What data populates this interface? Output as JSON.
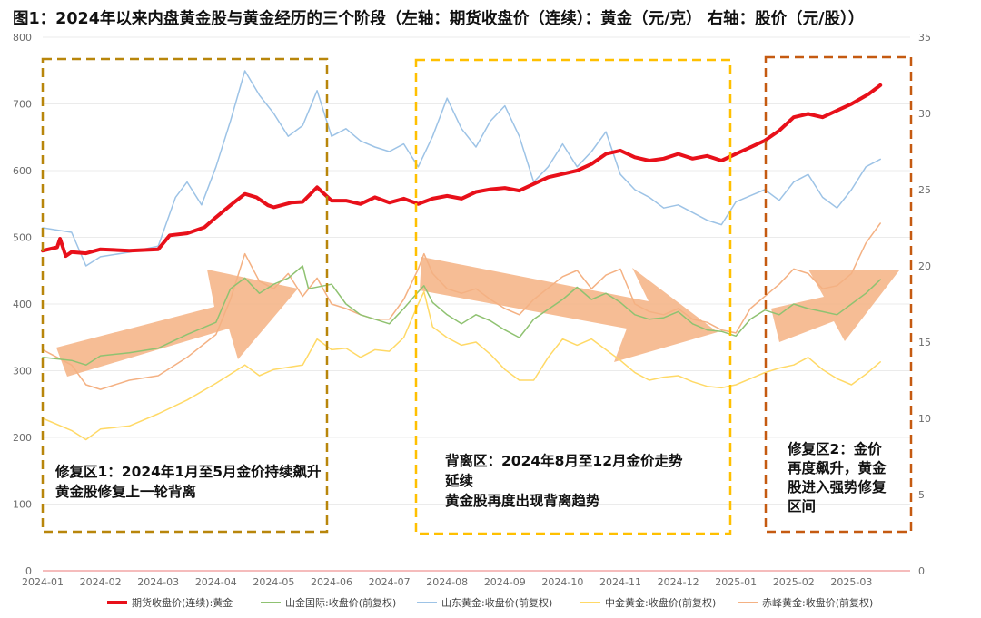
{
  "title": "图1：2024年以来内盘黄金股与黄金经历的三个阶段（左轴：期货收盘价（连续）：黄金（元/克） 右轴：股价（元/股））",
  "chart_data": {
    "type": "line",
    "x_labels": [
      "2024-01",
      "2024-02",
      "2024-03",
      "2024-04",
      "2024-05",
      "2024-06",
      "2024-07",
      "2024-08",
      "2024-09",
      "2024-10",
      "2024-11",
      "2024-12",
      "2025-01",
      "2025-02",
      "2025-03"
    ],
    "y_left": {
      "label": "期货收盘价（连续）：黄金（元/克）",
      "range": [
        0,
        800
      ],
      "ticks": [
        0,
        100,
        200,
        300,
        400,
        500,
        600,
        700,
        800
      ]
    },
    "y_right": {
      "label": "股价（元/股）",
      "range": [
        0,
        35
      ],
      "ticks": [
        0,
        5,
        10,
        15,
        20,
        25,
        30,
        35
      ]
    },
    "series": [
      {
        "name": "期货收盘价(连续):黄金",
        "axis": "left",
        "color": "#e8101a",
        "width": 4,
        "points": [
          [
            0,
            480
          ],
          [
            0.25,
            485
          ],
          [
            0.3,
            498
          ],
          [
            0.4,
            472
          ],
          [
            0.5,
            478
          ],
          [
            0.75,
            476
          ],
          [
            1,
            482
          ],
          [
            1.5,
            480
          ],
          [
            2,
            482
          ],
          [
            2.2,
            503
          ],
          [
            2.5,
            506
          ],
          [
            2.8,
            515
          ],
          [
            3,
            530
          ],
          [
            3.25,
            548
          ],
          [
            3.5,
            565
          ],
          [
            3.7,
            560
          ],
          [
            3.9,
            548
          ],
          [
            4,
            545
          ],
          [
            4.3,
            552
          ],
          [
            4.5,
            553
          ],
          [
            4.75,
            575
          ],
          [
            5,
            555
          ],
          [
            5.25,
            555
          ],
          [
            5.5,
            550
          ],
          [
            5.75,
            560
          ],
          [
            6,
            552
          ],
          [
            6.25,
            558
          ],
          [
            6.5,
            550
          ],
          [
            6.75,
            558
          ],
          [
            7,
            562
          ],
          [
            7.25,
            558
          ],
          [
            7.5,
            568
          ],
          [
            7.75,
            572
          ],
          [
            8,
            574
          ],
          [
            8.25,
            570
          ],
          [
            8.5,
            580
          ],
          [
            8.75,
            590
          ],
          [
            9,
            595
          ],
          [
            9.25,
            600
          ],
          [
            9.5,
            610
          ],
          [
            9.75,
            625
          ],
          [
            10,
            630
          ],
          [
            10.25,
            620
          ],
          [
            10.5,
            615
          ],
          [
            10.75,
            618
          ],
          [
            11,
            625
          ],
          [
            11.25,
            618
          ],
          [
            11.5,
            622
          ],
          [
            11.75,
            615
          ],
          [
            12,
            625
          ],
          [
            12.25,
            635
          ],
          [
            12.5,
            645
          ],
          [
            12.75,
            660
          ],
          [
            13,
            680
          ],
          [
            13.25,
            685
          ],
          [
            13.5,
            680
          ],
          [
            13.75,
            690
          ],
          [
            14,
            700
          ],
          [
            14.3,
            715
          ],
          [
            14.5,
            728
          ]
        ]
      },
      {
        "name": "山金国际:收盘价(前复权)",
        "axis": "right",
        "color": "#8fc271",
        "width": 1.5,
        "points": [
          [
            0,
            14
          ],
          [
            0.5,
            13.8
          ],
          [
            0.75,
            13.5
          ],
          [
            1,
            14.1
          ],
          [
            1.5,
            14.3
          ],
          [
            2,
            14.6
          ],
          [
            2.5,
            15.5
          ],
          [
            3,
            16.3
          ],
          [
            3.25,
            18.5
          ],
          [
            3.5,
            19.2
          ],
          [
            3.75,
            18.2
          ],
          [
            4,
            18.8
          ],
          [
            4.25,
            19.2
          ],
          [
            4.5,
            20
          ],
          [
            4.6,
            18.5
          ],
          [
            5,
            18.8
          ],
          [
            5.25,
            17.5
          ],
          [
            5.5,
            16.8
          ],
          [
            5.75,
            16.5
          ],
          [
            6,
            16.2
          ],
          [
            6.25,
            17.2
          ],
          [
            6.5,
            18.3
          ],
          [
            6.6,
            18.7
          ],
          [
            6.75,
            17.6
          ],
          [
            7,
            16.8
          ],
          [
            7.25,
            16.2
          ],
          [
            7.5,
            16.8
          ],
          [
            7.75,
            16.4
          ],
          [
            8,
            15.8
          ],
          [
            8.25,
            15.3
          ],
          [
            8.5,
            16.5
          ],
          [
            9,
            17.8
          ],
          [
            9.25,
            18.6
          ],
          [
            9.5,
            17.8
          ],
          [
            9.75,
            18.2
          ],
          [
            10,
            17.6
          ],
          [
            10.25,
            16.8
          ],
          [
            10.5,
            16.5
          ],
          [
            10.75,
            16.6
          ],
          [
            11,
            17
          ],
          [
            11.25,
            16.2
          ],
          [
            11.5,
            15.8
          ],
          [
            11.75,
            15.7
          ],
          [
            12,
            15.4
          ],
          [
            12.25,
            16.5
          ],
          [
            12.5,
            17.1
          ],
          [
            12.75,
            16.8
          ],
          [
            13,
            17.5
          ],
          [
            13.25,
            17.2
          ],
          [
            13.5,
            17
          ],
          [
            13.75,
            16.8
          ],
          [
            14,
            17.5
          ],
          [
            14.25,
            18.2
          ],
          [
            14.5,
            19.1
          ]
        ]
      },
      {
        "name": "山东黄金:收盘价(前复权)",
        "axis": "right",
        "color": "#9dc3e6",
        "width": 1.5,
        "points": [
          [
            0,
            22.5
          ],
          [
            0.5,
            22.2
          ],
          [
            0.75,
            20
          ],
          [
            1,
            20.6
          ],
          [
            1.5,
            20.9
          ],
          [
            2,
            21.3
          ],
          [
            2.3,
            24.5
          ],
          [
            2.5,
            25.5
          ],
          [
            2.75,
            24
          ],
          [
            3,
            26.5
          ],
          [
            3.25,
            29.5
          ],
          [
            3.5,
            32.8
          ],
          [
            3.75,
            31.2
          ],
          [
            4,
            30
          ],
          [
            4.25,
            28.5
          ],
          [
            4.5,
            29.2
          ],
          [
            4.75,
            31.5
          ],
          [
            5,
            28.5
          ],
          [
            5.25,
            29
          ],
          [
            5.5,
            28.2
          ],
          [
            5.75,
            27.8
          ],
          [
            6,
            27.5
          ],
          [
            6.25,
            28
          ],
          [
            6.5,
            26.5
          ],
          [
            6.75,
            28.5
          ],
          [
            7,
            31
          ],
          [
            7.25,
            29
          ],
          [
            7.5,
            27.8
          ],
          [
            7.75,
            29.5
          ],
          [
            8,
            30.5
          ],
          [
            8.25,
            28.5
          ],
          [
            8.5,
            25.5
          ],
          [
            8.75,
            26.5
          ],
          [
            9,
            28
          ],
          [
            9.25,
            26.5
          ],
          [
            9.5,
            27.5
          ],
          [
            9.75,
            28.8
          ],
          [
            10,
            26
          ],
          [
            10.25,
            25
          ],
          [
            10.5,
            24.5
          ],
          [
            10.75,
            23.8
          ],
          [
            11,
            24
          ],
          [
            11.25,
            23.5
          ],
          [
            11.5,
            23
          ],
          [
            11.75,
            22.7
          ],
          [
            12,
            24.2
          ],
          [
            12.25,
            24.6
          ],
          [
            12.5,
            25
          ],
          [
            12.75,
            24.3
          ],
          [
            13,
            25.5
          ],
          [
            13.25,
            26
          ],
          [
            13.5,
            24.5
          ],
          [
            13.75,
            23.8
          ],
          [
            14,
            25
          ],
          [
            14.25,
            26.5
          ],
          [
            14.5,
            27
          ]
        ]
      },
      {
        "name": "中金黄金:收盘价(前复权)",
        "axis": "right",
        "color": "#ffd966",
        "width": 1.5,
        "points": [
          [
            0,
            10
          ],
          [
            0.5,
            9.2
          ],
          [
            0.75,
            8.6
          ],
          [
            1,
            9.3
          ],
          [
            1.5,
            9.5
          ],
          [
            2,
            10.3
          ],
          [
            2.5,
            11.2
          ],
          [
            3,
            12.3
          ],
          [
            3.5,
            13.5
          ],
          [
            3.75,
            12.8
          ],
          [
            4,
            13.2
          ],
          [
            4.5,
            13.5
          ],
          [
            4.75,
            15.2
          ],
          [
            5,
            14.5
          ],
          [
            5.25,
            14.6
          ],
          [
            5.5,
            14
          ],
          [
            5.75,
            14.5
          ],
          [
            6,
            14.4
          ],
          [
            6.25,
            15.3
          ],
          [
            6.5,
            17.5
          ],
          [
            6.6,
            18.3
          ],
          [
            6.75,
            16
          ],
          [
            7,
            15.3
          ],
          [
            7.25,
            14.8
          ],
          [
            7.5,
            15
          ],
          [
            7.75,
            14.2
          ],
          [
            8,
            13.2
          ],
          [
            8.25,
            12.5
          ],
          [
            8.5,
            12.5
          ],
          [
            8.75,
            14
          ],
          [
            9,
            15.2
          ],
          [
            9.25,
            14.8
          ],
          [
            9.5,
            15.2
          ],
          [
            9.75,
            14.5
          ],
          [
            10,
            13.8
          ],
          [
            10.25,
            13
          ],
          [
            10.5,
            12.5
          ],
          [
            10.75,
            12.7
          ],
          [
            11,
            12.8
          ],
          [
            11.25,
            12.4
          ],
          [
            11.5,
            12.1
          ],
          [
            11.75,
            12
          ],
          [
            12,
            12.2
          ],
          [
            12.25,
            12.6
          ],
          [
            12.5,
            13
          ],
          [
            12.75,
            13.3
          ],
          [
            13,
            13.5
          ],
          [
            13.25,
            14
          ],
          [
            13.5,
            13.2
          ],
          [
            13.75,
            12.6
          ],
          [
            14,
            12.2
          ],
          [
            14.25,
            12.9
          ],
          [
            14.5,
            13.7
          ]
        ]
      },
      {
        "name": "赤峰黄金:收盘价(前复权)",
        "axis": "right",
        "color": "#f4b183",
        "width": 1.5,
        "points": [
          [
            0,
            14.5
          ],
          [
            0.5,
            13.5
          ],
          [
            0.75,
            12.2
          ],
          [
            1,
            11.9
          ],
          [
            1.5,
            12.5
          ],
          [
            2,
            12.8
          ],
          [
            2.5,
            14
          ],
          [
            3,
            15.5
          ],
          [
            3.25,
            17.8
          ],
          [
            3.5,
            20.8
          ],
          [
            3.75,
            19
          ],
          [
            4,
            18.5
          ],
          [
            4.25,
            19.5
          ],
          [
            4.5,
            18
          ],
          [
            4.75,
            19.2
          ],
          [
            5,
            17.5
          ],
          [
            5.25,
            17.2
          ],
          [
            5.5,
            16.8
          ],
          [
            5.75,
            16.5
          ],
          [
            6,
            16.5
          ],
          [
            6.25,
            17.8
          ],
          [
            6.5,
            19.8
          ],
          [
            6.6,
            20.8
          ],
          [
            6.75,
            19.5
          ],
          [
            7,
            18.5
          ],
          [
            7.25,
            18.2
          ],
          [
            7.5,
            18.5
          ],
          [
            7.75,
            17.8
          ],
          [
            8,
            17.2
          ],
          [
            8.25,
            16.8
          ],
          [
            8.5,
            17.8
          ],
          [
            9,
            19.3
          ],
          [
            9.25,
            19.7
          ],
          [
            9.5,
            18.5
          ],
          [
            9.75,
            19.4
          ],
          [
            10,
            19.8
          ],
          [
            10.25,
            17.5
          ],
          [
            10.5,
            17
          ],
          [
            10.75,
            16.8
          ],
          [
            11,
            17.2
          ],
          [
            11.25,
            16.5
          ],
          [
            11.5,
            16.3
          ],
          [
            11.75,
            15.8
          ],
          [
            12,
            15.6
          ],
          [
            12.25,
            17.2
          ],
          [
            12.5,
            18
          ],
          [
            12.75,
            18.8
          ],
          [
            13,
            19.8
          ],
          [
            13.25,
            19.5
          ],
          [
            13.5,
            18.5
          ],
          [
            13.75,
            18.7
          ],
          [
            14,
            19.5
          ],
          [
            14.25,
            21.5
          ],
          [
            14.5,
            22.8
          ]
        ]
      }
    ],
    "annotations": [
      {
        "id": "zone-1",
        "color": "#b8860b",
        "lines": [
          "修复区1：2024年1月至5月金价持续飙升",
          "黄金股修复上一轮背离"
        ]
      },
      {
        "id": "zone-2",
        "color": "#ffc000",
        "lines": [
          "背离区：2024年8月至12月金价走势",
          "延续",
          "黄金股再度出现背离趋势"
        ]
      },
      {
        "id": "zone-3",
        "color": "#c55a11",
        "lines": [
          "修复区2：金价",
          "再度飙升，黄金",
          "股进入强势修复",
          "区间"
        ]
      }
    ]
  }
}
